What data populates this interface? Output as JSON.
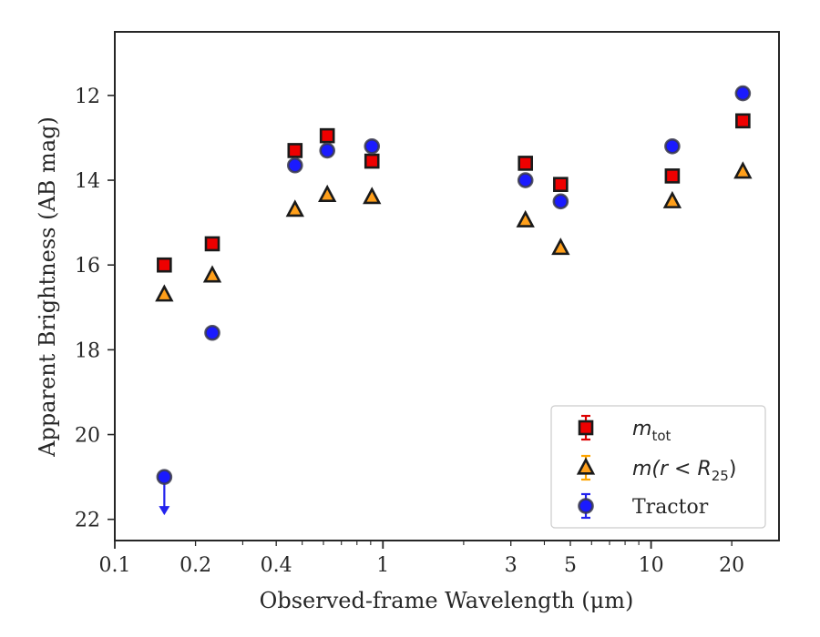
{
  "chart_data": {
    "type": "scatter",
    "xlabel": "Observed-frame Wavelength (μm)",
    "ylabel": "Apparent Brightness (AB mag)",
    "x_scale": "log",
    "y_inverted": true,
    "xlim": [
      0.1,
      30
    ],
    "ylim": [
      22.5,
      10.5
    ],
    "x_ticks": [
      {
        "value": 0.1,
        "label": "0.1"
      },
      {
        "value": 0.2,
        "label": "0.2"
      },
      {
        "value": 0.4,
        "label": "0.4"
      },
      {
        "value": 1,
        "label": "1"
      },
      {
        "value": 3,
        "label": "3"
      },
      {
        "value": 5,
        "label": "5"
      },
      {
        "value": 10,
        "label": "10"
      },
      {
        "value": 20,
        "label": "20"
      }
    ],
    "y_ticks": [
      {
        "value": 12,
        "label": "12"
      },
      {
        "value": 14,
        "label": "14"
      },
      {
        "value": 16,
        "label": "16"
      },
      {
        "value": 18,
        "label": "18"
      },
      {
        "value": 20,
        "label": "20"
      },
      {
        "value": 22,
        "label": "22"
      }
    ],
    "grid": false,
    "legend_position": "lower-right",
    "series": [
      {
        "name": "m_tot",
        "label_main": "m",
        "label_sub": "tot",
        "marker": "square",
        "color": "#ee0000",
        "error_color": "#dd0000",
        "points": [
          {
            "x": 0.153,
            "y": 16.0
          },
          {
            "x": 0.231,
            "y": 15.5
          },
          {
            "x": 0.47,
            "y": 13.3
          },
          {
            "x": 0.62,
            "y": 12.95
          },
          {
            "x": 0.91,
            "y": 13.55
          },
          {
            "x": 3.4,
            "y": 13.6
          },
          {
            "x": 4.6,
            "y": 14.1
          },
          {
            "x": 12.0,
            "y": 13.9
          },
          {
            "x": 22.0,
            "y": 12.6
          }
        ]
      },
      {
        "name": "m(r < R_25)",
        "label_main": "m(r < R",
        "label_sub": "25",
        "label_tail": ")",
        "marker": "triangle",
        "color": "#ff9f1a",
        "error_color": "#ffa500",
        "points": [
          {
            "x": 0.153,
            "y": 16.7
          },
          {
            "x": 0.231,
            "y": 16.25
          },
          {
            "x": 0.47,
            "y": 14.7
          },
          {
            "x": 0.62,
            "y": 14.35
          },
          {
            "x": 0.91,
            "y": 14.4
          },
          {
            "x": 3.4,
            "y": 14.95
          },
          {
            "x": 4.6,
            "y": 15.6
          },
          {
            "x": 12.0,
            "y": 14.5
          },
          {
            "x": 22.0,
            "y": 13.8
          }
        ]
      },
      {
        "name": "Tractor",
        "label_main": "Tractor",
        "marker": "circle",
        "color": "#1a1aff",
        "error_color": "#2222ee",
        "points": [
          {
            "x": 0.153,
            "y": 21.0,
            "upper_limit": true
          },
          {
            "x": 0.231,
            "y": 17.6
          },
          {
            "x": 0.47,
            "y": 13.65
          },
          {
            "x": 0.62,
            "y": 13.3
          },
          {
            "x": 0.91,
            "y": 13.2
          },
          {
            "x": 3.4,
            "y": 14.0
          },
          {
            "x": 4.6,
            "y": 14.5
          },
          {
            "x": 12.0,
            "y": 13.2
          },
          {
            "x": 22.0,
            "y": 11.95
          }
        ]
      }
    ]
  }
}
